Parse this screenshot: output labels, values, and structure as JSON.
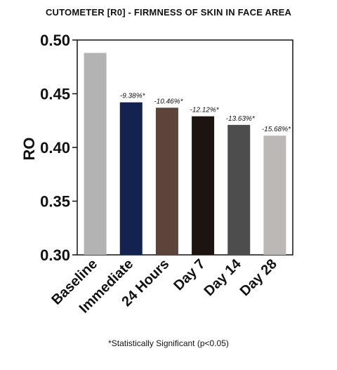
{
  "chart_data": {
    "type": "bar",
    "title": "CUTOMETER [R0] - FIRMNESS OF SKIN IN FACE AREA",
    "xlabel": "",
    "ylabel": "RO",
    "ylim": [
      0.3,
      0.5
    ],
    "yticks": [
      "0.30",
      "0.35",
      "0.40",
      "0.45",
      "0.50"
    ],
    "grid": false,
    "categories": [
      "Baseline",
      "Immediate",
      "24 Hours",
      "Day 7",
      "Day 14",
      "Day 28"
    ],
    "values": [
      0.488,
      0.442,
      0.437,
      0.429,
      0.421,
      0.411
    ],
    "bar_labels": [
      "",
      "-9.38%*",
      "-10.46%*",
      "-12.12%*",
      "-13.63%*",
      "-15.68%*"
    ],
    "colors": [
      "#b3b3b3",
      "#13224f",
      "#5c443a",
      "#1d1311",
      "#4d4d4d",
      "#bcb8b5"
    ],
    "footnote": "*Statistically Significant (p<0.05)"
  }
}
